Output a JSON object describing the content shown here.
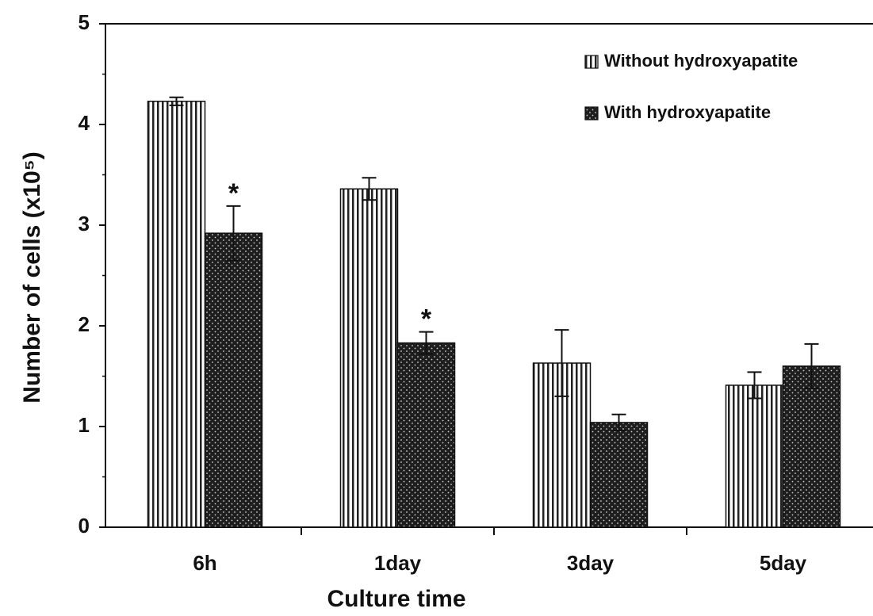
{
  "chart_data": {
    "type": "bar",
    "x_label": "Culture time",
    "y_label": "Number of cells (x10⁵)",
    "categories": [
      "6h",
      "1day",
      "3day",
      "5day"
    ],
    "series": [
      {
        "name": "Without hydroxyapatite",
        "color": "#ffffff",
        "pattern": "vertical-lines",
        "values": [
          4.23,
          3.36,
          1.63,
          1.41
        ],
        "errors": [
          0.04,
          0.11,
          0.33,
          0.13
        ]
      },
      {
        "name": "With hydroxyapatite",
        "color": "#1e1e1e",
        "pattern": "dots",
        "values": [
          2.92,
          1.83,
          1.04,
          1.6
        ],
        "errors": [
          0.27,
          0.11,
          0.08,
          0.22
        ]
      }
    ],
    "annotations": [
      {
        "text": "*",
        "category": "6h",
        "series": "With hydroxyapatite"
      },
      {
        "text": "*",
        "category": "1day",
        "series": "With hydroxyapatite"
      }
    ],
    "ylim": [
      0,
      5
    ],
    "yticks": [
      0,
      1,
      2,
      3,
      4,
      5
    ],
    "yminor_ticks": [
      0.5,
      1.5,
      2.5,
      3.5,
      4.5
    ],
    "legend": "upper right"
  }
}
